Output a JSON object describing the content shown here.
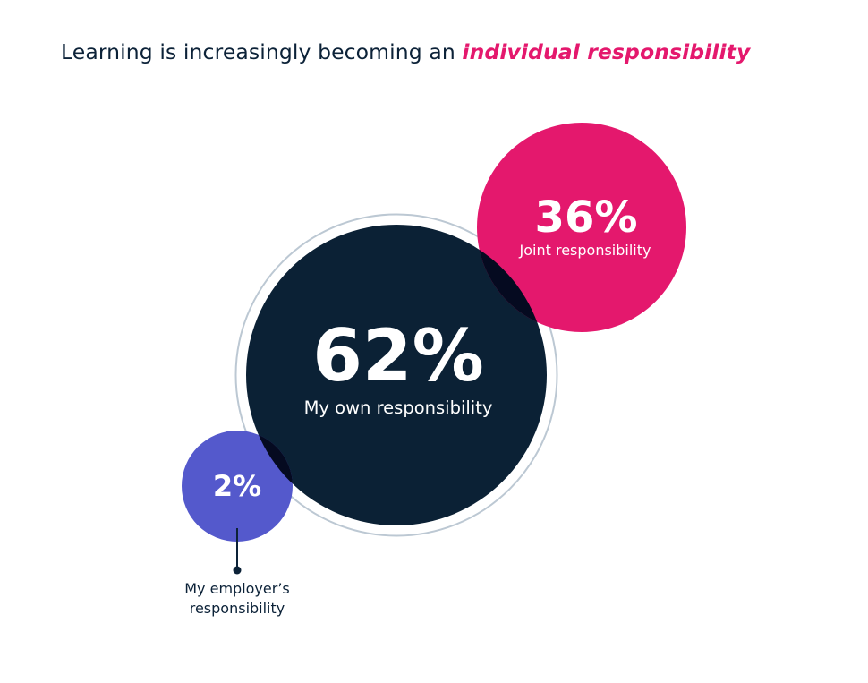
{
  "title": {
    "prefix": "Learning is increasingly becoming an ",
    "highlight": "individual responsibility"
  },
  "colors": {
    "navy": "#0b2135",
    "pink": "#e4186d",
    "purple": "#5459cc",
    "ring": "#bcc8d3",
    "overlap": "#050a20",
    "text_dark": "#0c2238"
  },
  "chart_data": {
    "type": "bubble",
    "title": "Learning is increasingly becoming an individual responsibility",
    "series": [
      {
        "name": "My own responsibility",
        "value": 62,
        "label": "62%"
      },
      {
        "name": "Joint responsibility",
        "value": 36,
        "label": "36%"
      },
      {
        "name": "My employer’s responsibility",
        "value": 2,
        "label": "2%",
        "label_lines": [
          "My employer’s",
          "responsibility"
        ]
      }
    ]
  }
}
